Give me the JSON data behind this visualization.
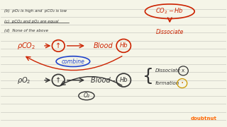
{
  "bg_color": "#f5f5e8",
  "line_color": "#c0c0b8",
  "red": "#cc2200",
  "blue": "#2244cc",
  "black": "#333333",
  "options": [
    "(b)  pO₂ is high and  pCO₂ is low",
    "(c)  pCO₂ and pO₂ are equal",
    "(d)  None of the above"
  ],
  "combine_label": "combine",
  "o2_label": "O₂",
  "dissociate_text": "Dissociate",
  "formation_label": "formation",
  "doubtnut_color": "#ff6600"
}
